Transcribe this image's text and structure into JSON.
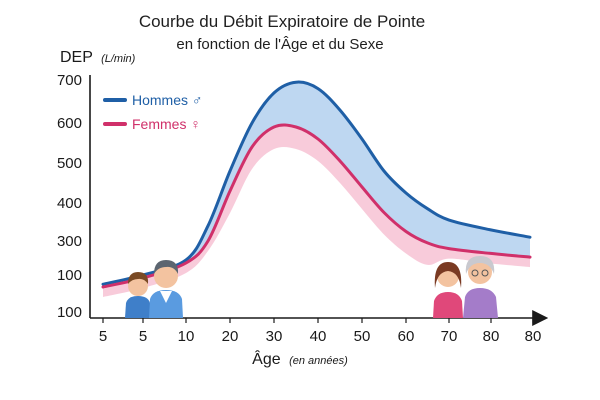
{
  "chart_data": {
    "type": "area",
    "title": "Courbe du Débit Expiratoire de Pointe",
    "subtitle": "en fonction de l'Âge et du Sexe",
    "ylabel": "DEP",
    "ylabel_unit": "(L/min)",
    "xlabel": "Âge",
    "xlabel_unit": "(en années)",
    "x_ticks": [
      "5",
      "5",
      "10",
      "20",
      "30",
      "40",
      "50",
      "60",
      "70",
      "80",
      "80"
    ],
    "y_ticks": [
      "700",
      "600",
      "500",
      "400",
      "300",
      "100",
      "100"
    ],
    "legend_placement": "top-left",
    "grid": false,
    "series": [
      {
        "name": "Hommes ♂",
        "color": "#1f5fa6",
        "fill_color": "#b7d3f0",
        "points": [
          {
            "age": 0,
            "dep": 85
          },
          {
            "age": 5,
            "dep": 125
          },
          {
            "age": 10,
            "dep": 200
          },
          {
            "age": 15,
            "dep": 340
          },
          {
            "age": 20,
            "dep": 480
          },
          {
            "age": 25,
            "dep": 600
          },
          {
            "age": 30,
            "dep": 670
          },
          {
            "age": 35,
            "dep": 695
          },
          {
            "age": 40,
            "dep": 680
          },
          {
            "age": 45,
            "dep": 630
          },
          {
            "age": 50,
            "dep": 560
          },
          {
            "age": 55,
            "dep": 480
          },
          {
            "age": 60,
            "dep": 425
          },
          {
            "age": 65,
            "dep": 385
          },
          {
            "age": 70,
            "dep": 355
          },
          {
            "age": 75,
            "dep": 330
          },
          {
            "age": 80,
            "dep": 310
          }
        ]
      },
      {
        "name": "Femmes ♀",
        "color": "#d0306a",
        "fill_color": "#f7c2d3",
        "points": [
          {
            "age": 0,
            "dep": 75
          },
          {
            "age": 5,
            "dep": 110
          },
          {
            "age": 10,
            "dep": 185
          },
          {
            "age": 15,
            "dep": 300
          },
          {
            "age": 20,
            "dep": 430
          },
          {
            "age": 25,
            "dep": 540
          },
          {
            "age": 30,
            "dep": 590
          },
          {
            "age": 35,
            "dep": 590
          },
          {
            "age": 40,
            "dep": 560
          },
          {
            "age": 45,
            "dep": 505
          },
          {
            "age": 50,
            "dep": 440
          },
          {
            "age": 55,
            "dep": 375
          },
          {
            "age": 60,
            "dep": 325
          },
          {
            "age": 65,
            "dep": 290
          },
          {
            "age": 70,
            "dep": 260
          },
          {
            "age": 75,
            "dep": 235
          },
          {
            "age": 80,
            "dep": 215
          }
        ]
      }
    ]
  },
  "illustrations": {
    "left": [
      "child-icon",
      "adult-man-icon"
    ],
    "right": [
      "woman-icon",
      "elderly-woman-icon"
    ]
  }
}
